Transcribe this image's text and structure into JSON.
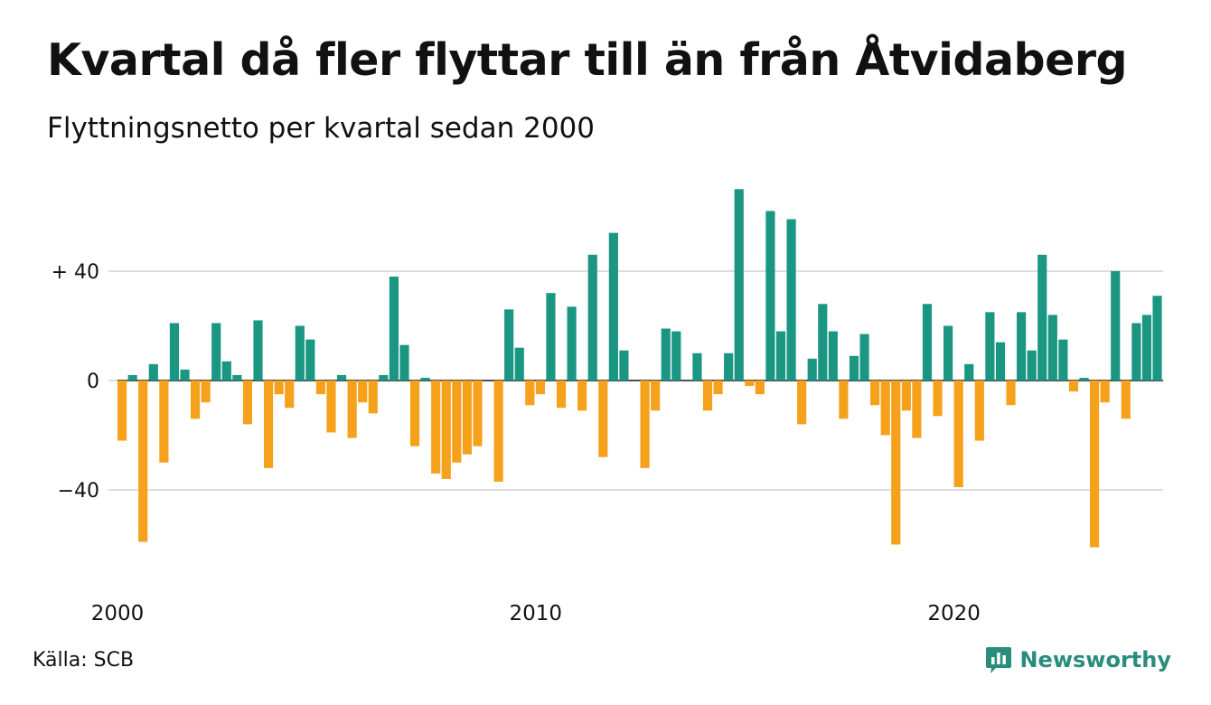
{
  "header": {
    "title": "Kvartal då fler flyttar till än från Åtvidaberg",
    "subtitle": "Flyttningsnetto per kvartal sedan 2000"
  },
  "footer": {
    "source": "Källa: SCB",
    "brand": "Newsworthy"
  },
  "colors": {
    "positive": "#1a9682",
    "negative": "#f5a11c",
    "grid": "#dddddd",
    "brand": "#2a8c7c"
  },
  "icons": {
    "brand_logo": "bar-chart-speech-bubble-icon"
  },
  "chart_data": {
    "type": "bar",
    "title": "Kvartal då fler flyttar till än från Åtvidaberg",
    "subtitle": "Flyttningsnetto per kvartal sedan 2000",
    "xlabel": "",
    "ylabel": "",
    "ylim": [
      -70,
      72
    ],
    "y_ticks": [
      {
        "value": 40,
        "label": "+ 40"
      },
      {
        "value": 0,
        "label": "0"
      },
      {
        "value": -40,
        "label": "−40"
      }
    ],
    "x_ticks": [
      {
        "index": 0,
        "label": "2000"
      },
      {
        "index": 40,
        "label": "2010"
      },
      {
        "index": 80,
        "label": "2020"
      }
    ],
    "grid": true,
    "legend": "none",
    "first_quarter": "2000 Q1",
    "values": [
      -22,
      2,
      -59,
      6,
      -30,
      21,
      4,
      -14,
      -8,
      21,
      7,
      2,
      -16,
      22,
      -32,
      -5,
      -10,
      20,
      15,
      -5,
      -19,
      2,
      -21,
      -8,
      -12,
      2,
      38,
      13,
      -24,
      1,
      -34,
      -36,
      -30,
      -27,
      -24,
      0,
      -37,
      26,
      12,
      -9,
      -5,
      32,
      -10,
      27,
      -11,
      46,
      -28,
      54,
      11,
      0,
      -32,
      -11,
      19,
      18,
      0,
      10,
      -11,
      -5,
      10,
      70,
      -2,
      -5,
      62,
      18,
      59,
      -16,
      8,
      28,
      18,
      -14,
      9,
      17,
      -9,
      -20,
      -60,
      -11,
      -21,
      28,
      -13,
      20,
      -39,
      6,
      -22,
      25,
      14,
      -9,
      25,
      11,
      46,
      24,
      15,
      -4,
      1,
      -61,
      -8,
      40,
      -14,
      21,
      24,
      31
    ]
  }
}
